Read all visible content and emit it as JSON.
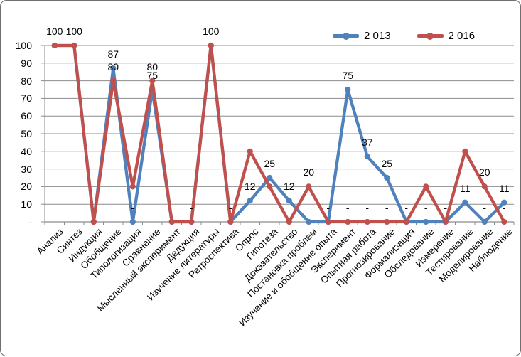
{
  "chart_data": {
    "type": "line",
    "title": "",
    "categories": [
      "Анализ",
      "Синтез",
      "Индукция",
      "Обобщение",
      "Типологизация",
      "Сравнение",
      "Мысленный эксперимент",
      "Дедукция",
      "Изучение литературы",
      "Ретроспектива",
      "Опрос",
      "Гипотеза",
      "Доказательство",
      "Постановка проблем",
      "Изучение и обобщение опыта",
      "Эксперимент",
      "Опытная работа",
      "Прогнозирование",
      "Формализация",
      "Обследование",
      "Измерение",
      "Тестирование",
      "Моделирование",
      "Наблюдение"
    ],
    "series": [
      {
        "name": "2 013",
        "color": "#4F81BD",
        "values": [
          100,
          100,
          0,
          87,
          0,
          75,
          0,
          0,
          100,
          0,
          12,
          25,
          12,
          0,
          0,
          75,
          37,
          25,
          0,
          0,
          0,
          11,
          0,
          11
        ],
        "point_labels": [
          null,
          null,
          null,
          "87",
          "-",
          "75",
          null,
          null,
          null,
          null,
          "12",
          "25",
          "12",
          null,
          null,
          "75",
          "37",
          "25",
          null,
          "-",
          null,
          "11",
          "-",
          "11"
        ]
      },
      {
        "name": "2 016",
        "color": "#C0504D",
        "values": [
          100,
          100,
          0,
          80,
          20,
          80,
          0,
          0,
          100,
          0,
          40,
          20,
          0,
          20,
          0,
          0,
          0,
          0,
          0,
          20,
          0,
          40,
          20,
          0
        ],
        "point_labels": [
          "100",
          "100",
          null,
          "80",
          null,
          "80",
          null,
          "-",
          "100",
          "-",
          null,
          null,
          null,
          "20",
          "-",
          "-",
          "-",
          "-",
          "-",
          null,
          "-",
          null,
          "20",
          "-"
        ]
      }
    ],
    "y_axis": {
      "min": 0,
      "max": 100,
      "step": 10,
      "tick_labels": [
        "100",
        "90",
        "80",
        "70",
        "60",
        "50",
        "40",
        "30",
        "20",
        "10",
        "-"
      ]
    },
    "legend": {
      "position": "top-right",
      "entries": [
        "2 013",
        "2 016"
      ]
    },
    "grid": "horizontal",
    "marker": "circle"
  },
  "style": {
    "series1_color": "#4F81BD",
    "series2_color": "#C0504D",
    "grid_color": "#8C8C8C",
    "axis_color": "#8C8C8C",
    "text_color": "#000000",
    "frame_border_color": "#6F6F6F",
    "background": "#FFFFFF"
  }
}
